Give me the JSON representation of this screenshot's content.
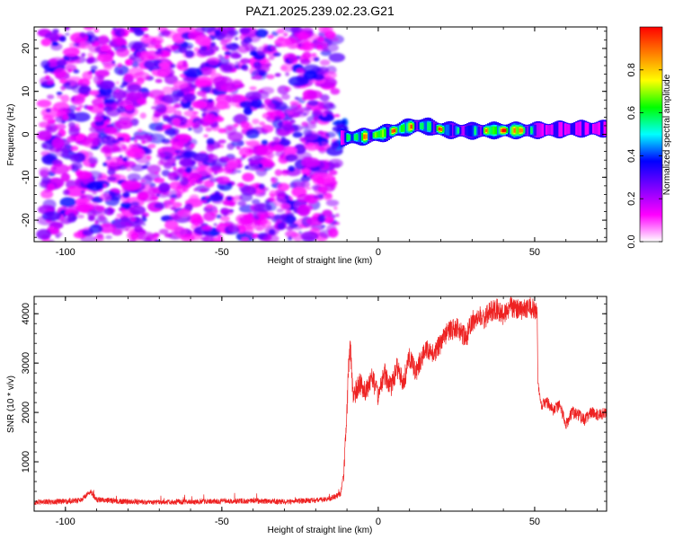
{
  "title": "PAZ1.2025.239.02.23.G21",
  "chart_data": [
    {
      "type": "heatmap",
      "title": "PAZ1.2025.239.02.23.G21",
      "xlabel": "Height of straight line (km)",
      "ylabel": "Frequency (Hz)",
      "xlim": [
        -110,
        73
      ],
      "ylim": [
        -25,
        25
      ],
      "x_ticks": [
        -100,
        -50,
        0,
        50
      ],
      "y_ticks": [
        -20,
        -10,
        0,
        10,
        20
      ],
      "colorbar": {
        "label": "Normalized spectral amplitude",
        "range": [
          0.0,
          1.0
        ],
        "ticks": [
          "0.0",
          "0.2",
          "0.4",
          "0.6",
          "0.8"
        ],
        "colormap": [
          "#ffffff",
          "#ff00ff",
          "#8000ff",
          "#0000ff",
          "#00ffff",
          "#00ff00",
          "#ffff00",
          "#ff8000",
          "#ff0000"
        ]
      },
      "noise_region_x": [
        -107,
        -13
      ],
      "signal_ridge": {
        "x": [
          -12,
          -8,
          -4,
          0,
          4,
          8,
          12,
          16,
          20,
          24,
          28,
          32,
          36,
          40,
          44,
          48,
          52,
          56,
          60,
          64,
          68,
          72
        ],
        "frequency": [
          -0.8,
          -0.7,
          -0.5,
          0.0,
          0.7,
          1.5,
          2.0,
          1.8,
          1.1,
          0.9,
          0.8,
          0.8,
          0.9,
          0.9,
          0.9,
          0.9,
          1.0,
          1.1,
          1.2,
          1.3,
          1.3,
          1.3
        ],
        "peak_amplitude": [
          0.45,
          0.85,
          0.8,
          0.85,
          0.85,
          0.9,
          0.75,
          0.7,
          0.9,
          0.6,
          0.6,
          0.7,
          0.9,
          0.95,
          0.95,
          0.7,
          0.35,
          0.3,
          0.3,
          0.3,
          0.3,
          0.3
        ]
      }
    },
    {
      "type": "line",
      "xlabel": "Height of straight line (km)",
      "ylabel": "SNR (10 * v/v)",
      "xlim": [
        -110,
        73
      ],
      "ylim": [
        0,
        4350
      ],
      "x_ticks": [
        -100,
        -50,
        0,
        50
      ],
      "y_ticks": [
        1000,
        2000,
        3000,
        4000
      ],
      "color": "#ee2222",
      "series": [
        {
          "x": [
            -110,
            -100,
            -95,
            -92,
            -90,
            -80,
            -70,
            -60,
            -50,
            -40,
            -30,
            -20,
            -15,
            -12,
            -11,
            -10,
            -9.5,
            -9,
            -8,
            -6,
            -4,
            -2,
            0,
            2,
            4,
            6,
            8,
            10,
            12,
            15,
            18,
            20,
            22,
            25,
            28,
            30,
            32,
            34,
            36,
            38,
            40,
            42,
            44,
            46,
            48,
            50,
            50.8,
            51,
            52,
            54,
            56,
            58,
            60,
            62,
            64,
            66,
            68,
            70,
            73
          ],
          "y": [
            180,
            200,
            220,
            400,
            230,
            190,
            180,
            190,
            200,
            210,
            190,
            220,
            260,
            350,
            800,
            2000,
            2900,
            3400,
            2300,
            2600,
            2400,
            2700,
            2350,
            2800,
            2500,
            2900,
            2600,
            3100,
            2800,
            3300,
            3200,
            3400,
            3600,
            3750,
            3500,
            3850,
            3950,
            3900,
            4050,
            4100,
            3950,
            4150,
            4100,
            4050,
            4150,
            4100,
            4050,
            2600,
            2150,
            2200,
            2050,
            2150,
            1750,
            2000,
            1950,
            1850,
            2000,
            1950,
            2000
          ]
        }
      ]
    }
  ]
}
